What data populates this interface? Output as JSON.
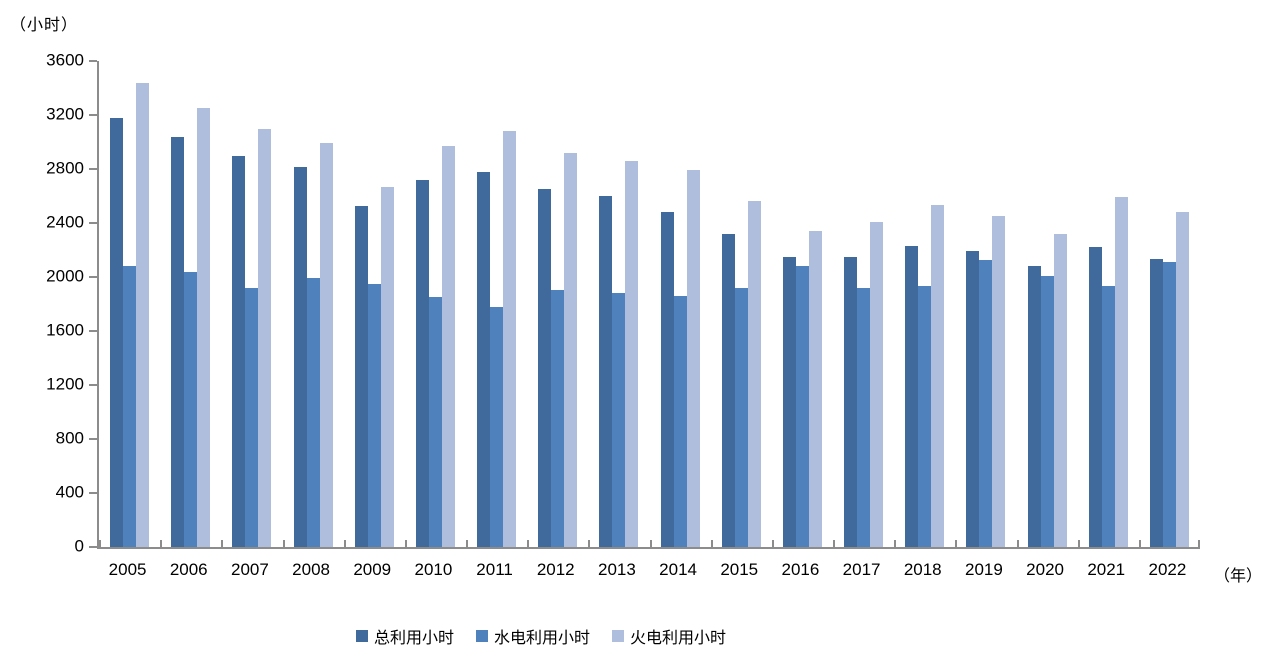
{
  "chart_data": {
    "type": "bar",
    "title": "",
    "unit_label": "（小时）",
    "x_axis_label": "（年）",
    "categories": [
      "2005",
      "2006",
      "2007",
      "2008",
      "2009",
      "2010",
      "2011",
      "2012",
      "2013",
      "2014",
      "2015",
      "2016",
      "2017",
      "2018",
      "2019",
      "2020",
      "2021",
      "2022"
    ],
    "series": [
      {
        "name": "总利用小时",
        "color": "#3F6A9B",
        "values": [
          3175,
          3035,
          2900,
          2815,
          2525,
          2720,
          2775,
          2650,
          2600,
          2480,
          2315,
          2150,
          2150,
          2230,
          2190,
          2080,
          2220,
          2135
        ]
      },
      {
        "name": "水电利用小时",
        "color": "#4F81BD",
        "values": [
          2080,
          2040,
          1920,
          1995,
          1945,
          1855,
          1775,
          1905,
          1885,
          1860,
          1915,
          2085,
          1920,
          1930,
          2125,
          2005,
          1935,
          2110
        ]
      },
      {
        "name": "火电利用小时",
        "color": "#AFBEDC",
        "values": [
          3440,
          3255,
          3095,
          2990,
          2670,
          2970,
          3080,
          2915,
          2860,
          2795,
          2560,
          2340,
          2405,
          2535,
          2450,
          2320,
          2595,
          2485
        ]
      }
    ],
    "y_axis": {
      "min": 0,
      "max": 3600,
      "step": 400,
      "ticks": [
        "0",
        "400",
        "800",
        "1200",
        "1600",
        "2000",
        "2400",
        "2800",
        "3200",
        "3600"
      ]
    },
    "legend_position": "bottom",
    "grid": false,
    "axis_color": "#8C8C8C",
    "text_color": "#000000",
    "background": "#FFFFFF"
  }
}
